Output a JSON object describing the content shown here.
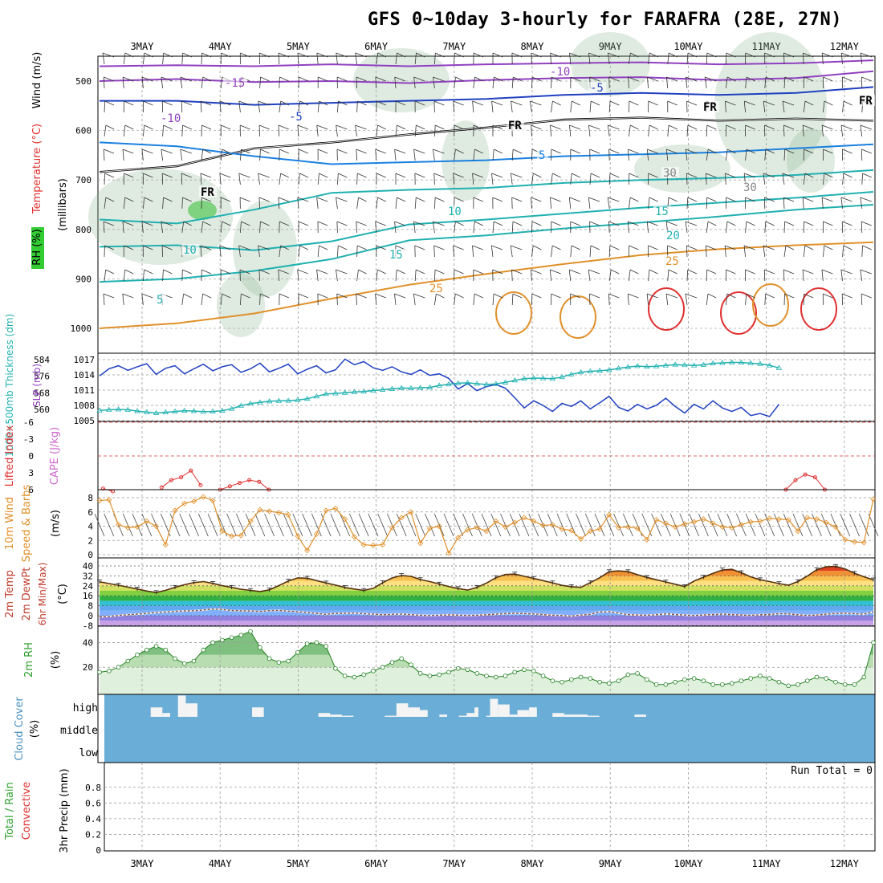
{
  "title": "GFS 0~10day 3-hourly for FARAFRA (28E, 27N)",
  "dates": [
    "3MAY",
    "4MAY",
    "5MAY",
    "6MAY",
    "7MAY",
    "8MAY",
    "9MAY",
    "10MAY",
    "11MAY",
    "12MAY"
  ],
  "run_total": "Run Total = 0",
  "colors": {
    "red": "#e03030",
    "green": "#30a030",
    "blue": "#2040c0",
    "purple": "#9040c0",
    "orange": "#e0902a",
    "cyan": "#20b0b0",
    "steel": "#4a90c0",
    "cloud": "#6aadd6"
  },
  "chart_data": [
    {
      "type": "heatmap",
      "panel": "upper-air",
      "ylabel_parts": [
        "RH (%)",
        "Temperature (°C)",
        "Wind (m/s)"
      ],
      "ylabel_unit": "(millibars)",
      "y_ticks": [
        "500",
        "600",
        "700",
        "800",
        "900",
        "1000"
      ],
      "ylim": [
        1050,
        450
      ],
      "contour_labels": [
        "-15",
        "-10",
        "-10",
        "-5",
        "-5",
        "5",
        "10",
        "10",
        "15",
        "15",
        "20",
        "25",
        "25",
        "5",
        "FR",
        "FR",
        "FR",
        "FR",
        "30",
        "30"
      ],
      "isotherms": [
        {
          "name": "-15",
          "color": "#9040c0",
          "p": [
            470,
            468,
            470,
            466,
            470,
            466,
            464,
            462,
            466,
            464,
            458
          ]
        },
        {
          "name": "-10",
          "color": "#9040c0",
          "p": [
            500,
            496,
            502,
            500,
            504,
            498,
            494,
            492,
            498,
            494,
            480
          ]
        },
        {
          "name": "-5",
          "color": "#2040c0",
          "p": [
            540,
            540,
            548,
            544,
            540,
            536,
            528,
            524,
            528,
            524,
            512
          ]
        },
        {
          "name": "FR",
          "color": "#000000",
          "p": [
            684,
            672,
            636,
            624,
            608,
            594,
            578,
            574,
            580,
            576,
            580
          ]
        },
        {
          "name": "5",
          "color": "#1a80e0",
          "p": [
            624,
            632,
            652,
            668,
            664,
            660,
            652,
            648,
            644,
            636,
            628
          ]
        },
        {
          "name": "10",
          "color": "#20b0b0",
          "p": [
            780,
            788,
            760,
            726,
            720,
            716,
            706,
            700,
            696,
            690,
            680
          ]
        },
        {
          "name": "15",
          "color": "#20b0b0",
          "p": [
            835,
            832,
            842,
            824,
            790,
            780,
            768,
            756,
            746,
            736,
            724
          ]
        },
        {
          "name": "20",
          "color": "#20b0b0",
          "p": [
            906,
            900,
            884,
            860,
            822,
            812,
            798,
            786,
            774,
            760,
            750
          ]
        },
        {
          "name": "25",
          "color": "#e0902a",
          "p": [
            1000,
            990,
            970,
            940,
            912,
            890,
            870,
            852,
            840,
            832,
            826
          ]
        }
      ]
    },
    {
      "type": "line",
      "panel": "thickness-slp",
      "ylabel_left": "1000~500mb Thickness (dm)",
      "ylabel_right": "SLP (mb)",
      "thickness_ticks": [
        "584",
        "576",
        "568",
        "560"
      ],
      "slp_ticks": [
        "1017",
        "1014",
        "1011",
        "1008",
        "1005"
      ],
      "series": [
        {
          "name": "SLP (mb)",
          "values": [
            1013.8,
            1015.2,
            1015.8,
            1014.9,
            1015.6,
            1016.2,
            1014.1,
            1015.3,
            1015.8,
            1014.2,
            1015.2,
            1016.1,
            1014.8,
            1015.6,
            1016.0,
            1014.5,
            1015.2,
            1016.3,
            1014.6,
            1015.3,
            1016.1,
            1014.2,
            1015.1,
            1015.8,
            1014.4,
            1015.0,
            1017.1,
            1016.0,
            1016.6,
            1015.4,
            1014.9,
            1015.6,
            1014.6,
            1014.1,
            1015.0,
            1013.9,
            1014.2,
            1013.3,
            1011.2,
            1012.3,
            1010.9,
            1011.7,
            1012.1,
            1011.4,
            1009.5,
            1007.5,
            1008.9,
            1008.0,
            1006.8,
            1008.4,
            1007.8,
            1008.9,
            1007.3,
            1008.5,
            1009.8,
            1007.6,
            1006.9,
            1008.2,
            1007.3,
            1008.0,
            1009.4,
            1007.8,
            1006.5,
            1008.2,
            1007.3,
            1008.9,
            1007.5,
            1006.8,
            1007.6,
            1006.0,
            1006.4,
            1005.8,
            1008.2
          ]
        },
        {
          "name": "1000~500mb Thickness (dm)",
          "values": [
            559.5,
            559.8,
            560.0,
            559.8,
            559.2,
            558.7,
            558.2,
            558.6,
            559.0,
            559.4,
            559.2,
            558.9,
            559.0,
            559.4,
            560.3,
            561.8,
            562.8,
            563.4,
            563.9,
            564.1,
            564.2,
            564.5,
            565.1,
            566.3,
            567.4,
            567.7,
            568.0,
            568.4,
            568.6,
            569.1,
            569.5,
            569.9,
            570.3,
            570.2,
            570.4,
            570.6,
            571.5,
            572.1,
            572.6,
            572.8,
            572.4,
            572.0,
            572.3,
            573.0,
            574.0,
            574.8,
            575.1,
            575.0,
            574.8,
            575.6,
            576.9,
            577.9,
            578.4,
            578.6,
            579.0,
            579.8,
            580.4,
            580.9,
            580.6,
            580.8,
            581.2,
            581.6,
            581.4,
            581.2,
            581.5,
            582.2,
            582.4,
            582.7,
            582.6,
            582.3,
            582.0,
            581.2,
            580.0
          ]
        }
      ]
    },
    {
      "type": "line",
      "panel": "stability",
      "ylabel": "Lifted Index",
      "ylabel2": "CAPE (J/kg)",
      "y_ticks": [
        "-6",
        "-3",
        "0",
        "3",
        "6"
      ],
      "ylim": [
        6,
        -6
      ],
      "series": [
        {
          "name": "Lifted Index",
          "segments": [
            {
              "x": [
                0,
                0.125
              ],
              "values": [
                5.8,
                6.3
              ]
            },
            {
              "x": [
                0.75,
                0.875,
                1.0,
                1.125,
                1.25
              ],
              "values": [
                5.6,
                4.3,
                3.8,
                2.6,
                5.2
              ]
            },
            {
              "x": [
                1.5,
                1.625,
                1.75,
                1.875,
                2.0,
                2.125
              ],
              "values": [
                6.0,
                5.4,
                4.8,
                4.3,
                4.6,
                6.0
              ]
            },
            {
              "x": [
                8.75,
                8.875,
                9.0,
                9.125,
                9.25
              ],
              "values": [
                6.0,
                4.3,
                3.3,
                3.8,
                6.0
              ]
            }
          ]
        }
      ]
    },
    {
      "type": "line",
      "panel": "wind10m",
      "ylabel": "10m Wind Speed & Barbs",
      "yunit": "(m/s)",
      "y_ticks": [
        "0",
        "2",
        "4",
        "6",
        "8"
      ],
      "ylim": [
        0,
        9
      ],
      "series": [
        {
          "name": "Speed (m/s)",
          "values": [
            7.6,
            7.7,
            4.2,
            3.8,
            3.9,
            4.7,
            4.0,
            1.4,
            6.2,
            7.2,
            7.5,
            8.1,
            7.6,
            3.3,
            2.6,
            2.7,
            4.7,
            6.3,
            6.1,
            5.9,
            5.6,
            2.6,
            0.6,
            2.9,
            6.2,
            6.5,
            5.0,
            2.5,
            1.4,
            1.3,
            1.4,
            3.8,
            5.2,
            6.0,
            1.6,
            3.7,
            4.0,
            0.2,
            2.4,
            3.5,
            3.8,
            3.3,
            4.7,
            3.9,
            4.5,
            5.2,
            4.7,
            4.1,
            4.2,
            3.6,
            3.4,
            2.2,
            3.3,
            3.6,
            5.6,
            3.8,
            3.9,
            3.7,
            2.1,
            4.9,
            4.4,
            3.9,
            4.3,
            4.6,
            5.0,
            4.4,
            3.9,
            3.8,
            4.2,
            4.6,
            4.7,
            5.1,
            5.0,
            4.9,
            3.3,
            5.2,
            5.0,
            4.5,
            3.9,
            2.1,
            1.8,
            1.7,
            7.8
          ]
        }
      ]
    },
    {
      "type": "area",
      "panel": "temp2m",
      "ylabel": "2m Temp 2m DewPt (6hr Min/Max)",
      "yunit": "(°C)",
      "y_ticks": [
        "-8",
        "0",
        "8",
        "16",
        "24",
        "32",
        "40"
      ],
      "ylim": [
        -10,
        44
      ],
      "series": [
        {
          "name": "2m Temp",
          "values": [
            27.2,
            25.8,
            24.5,
            23.0,
            21.4,
            19.8,
            18.6,
            20.4,
            22.8,
            24.9,
            26.6,
            27.4,
            26.0,
            24.1,
            22.8,
            21.2,
            20.3,
            19.4,
            20.8,
            24.2,
            27.8,
            30.4,
            30.1,
            28.2,
            26.3,
            24.6,
            22.7,
            21.4,
            20.3,
            22.0,
            26.5,
            30.3,
            32.3,
            31.6,
            29.0,
            27.4,
            25.4,
            23.5,
            21.8,
            20.6,
            22.8,
            26.2,
            30.6,
            33.1,
            33.5,
            31.7,
            30.0,
            28.2,
            26.4,
            24.4,
            23.3,
            22.8,
            26.5,
            30.5,
            35.4,
            36.0,
            35.4,
            33.0,
            30.8,
            28.9,
            27.1,
            25.3,
            23.4,
            27.8,
            31.0,
            34.0,
            36.8,
            37.3,
            34.6,
            31.2,
            28.9,
            27.4,
            25.8,
            24.5,
            27.4,
            31.9,
            37.0,
            39.3,
            39.6,
            37.6,
            34.1,
            31.3,
            28.8
          ]
        },
        {
          "name": "2m DewPt",
          "values": [
            -1.0,
            -0.6,
            0.2,
            0.8,
            1.2,
            1.8,
            2.5,
            3.0,
            3.5,
            3.9,
            4.0,
            4.6,
            5.3,
            5.0,
            4.1,
            4.0,
            3.8,
            3.4,
            4.1,
            4.3,
            3.7,
            3.3,
            2.6,
            1.8,
            1.1,
            1.8,
            1.9,
            2.1,
            1.6,
            1.2,
            0.8,
            1.1,
            1.3,
            0.9,
            0.4,
            0.1,
            0.4,
            0.7,
            0.5,
            0.2,
            0.4,
            0.8,
            1.2,
            1.6,
            1.9,
            1.7,
            1.4,
            0.9,
            0.4,
            0.1,
            -0.3,
            0.6,
            1.1,
            3.0,
            3.3,
            2.0,
            0.9,
            0.6,
            0.4,
            0.8,
            1.5,
            1.0,
            0.5,
            0.1,
            0.6,
            0.9,
            1.3,
            1.0,
            0.5,
            0.3,
            0.8,
            1.0,
            1.6,
            1.5,
            0.8,
            0.2,
            0.6,
            1.2,
            1.8,
            1.9,
            1.7,
            1.2,
            3.1
          ]
        }
      ]
    },
    {
      "type": "area",
      "panel": "rh2m",
      "ylabel": "2m RH",
      "yunit": "(%)",
      "y_ticks": [
        "20",
        "40"
      ],
      "ylim": [
        0,
        52
      ],
      "series": [
        {
          "name": "2m RH",
          "values": [
            16,
            17,
            20,
            25,
            30,
            34,
            37,
            34,
            27,
            23,
            25,
            34,
            40,
            42,
            44,
            46,
            49,
            36,
            27,
            24,
            25,
            32,
            39,
            40,
            37,
            19,
            13,
            12,
            14,
            17,
            20,
            24,
            27,
            22,
            15,
            13,
            14,
            16,
            19,
            18,
            15,
            13,
            12,
            13,
            16,
            18,
            17,
            13,
            9,
            8,
            10,
            12,
            11,
            8,
            7,
            9,
            14,
            15,
            10,
            6,
            6,
            8,
            10,
            11,
            9,
            6,
            6,
            7,
            9,
            11,
            13,
            11,
            8,
            5,
            6,
            9,
            12,
            11,
            8,
            6,
            6,
            12,
            40
          ]
        }
      ]
    },
    {
      "type": "bar",
      "panel": "cloud",
      "ylabel": "Cloud Cover",
      "yunit": "(%)",
      "y_ticks": [
        "high",
        "middle",
        "low"
      ],
      "series": [
        {
          "name": "high gaps",
          "x_start": [
            3.11,
            3.26,
            3.46,
            3.56,
            4.41,
            5.26,
            5.41,
            5.56,
            6.11,
            6.26,
            6.41,
            6.56,
            6.81,
            7.06,
            7.16,
            7.26,
            7.41,
            7.46,
            7.56,
            7.71,
            7.81,
            7.96,
            8.26,
            8.41,
            8.56,
            8.71,
            9.31
          ],
          "heights": [
            0.42,
            0.17,
            0.95,
            0.6,
            0.42,
            0.17,
            0.1,
            0.05,
            0.05,
            0.6,
            0.42,
            0.3,
            0.1,
            0.05,
            0.17,
            0.42,
            0.05,
            0.8,
            0.55,
            0.1,
            0.3,
            0.42,
            0.17,
            0.1,
            0.1,
            0.05,
            0.1
          ],
          "widths": [
            0.15,
            0.1,
            0.1,
            0.15,
            0.15,
            0.15,
            0.15,
            0.15,
            0.15,
            0.15,
            0.15,
            0.1,
            0.1,
            0.1,
            0.1,
            0.05,
            0.05,
            0.1,
            0.15,
            0.1,
            0.15,
            0.1,
            0.15,
            0.15,
            0.15,
            0.15,
            0.15
          ]
        }
      ]
    },
    {
      "type": "bar",
      "panel": "precip",
      "ylabel_parts": [
        "Total / Rain",
        "Convective"
      ],
      "ylabel": "3hr Precip (mm)",
      "y_ticks": [
        "0",
        "0.2",
        "0.4",
        "0.6",
        "0.8"
      ],
      "ylim": [
        0,
        1
      ],
      "values": []
    }
  ]
}
